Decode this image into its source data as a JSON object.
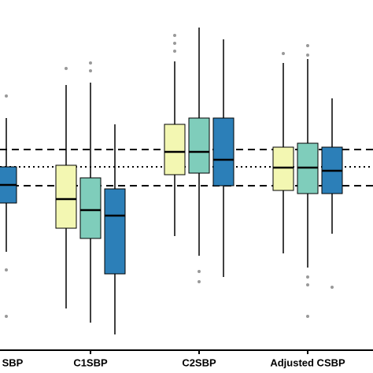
{
  "chart_data": {
    "type": "box",
    "categories": [
      "SBP",
      "C1SBP",
      "C2SBP",
      "Adjusted CSBP"
    ],
    "ylim": [
      0,
      445
    ],
    "hlines": [
      {
        "value": 255,
        "style": "dashed"
      },
      {
        "value": 233,
        "style": "dotted"
      },
      {
        "value": 209,
        "style": "dashed"
      }
    ],
    "series": [
      {
        "color": "#f3f7b2",
        "min": [
          null,
          53,
          145,
          123
        ],
        "q1": [
          null,
          155,
          223,
          203
        ],
        "median": [
          null,
          192,
          252,
          232
        ],
        "q3": [
          null,
          235,
          287,
          258
        ],
        "max": [
          null,
          337,
          367,
          365
        ],
        "outliers": [
          [],
          [
            358
          ],
          [
            400,
            390,
            380
          ],
          [
            377
          ]
        ]
      },
      {
        "color": "#7fcdbb",
        "min": [
          null,
          35,
          120,
          105
        ],
        "q1": [
          null,
          142,
          225,
          199
        ],
        "median": [
          null,
          178,
          252,
          232
        ],
        "q3": [
          null,
          219,
          295,
          263
        ],
        "max": [
          null,
          340,
          410,
          370
        ],
        "outliers": [
          [],
          [
            365,
            355
          ],
          [
            100,
            87
          ],
          [
            387,
            375,
            93,
            83,
            43
          ]
        ]
      },
      {
        "color": "#2c7fb8",
        "min": [
          125,
          20,
          93,
          148
        ],
        "q1": [
          187,
          97,
          209,
          199
        ],
        "median": [
          210,
          171,
          242,
          228
        ],
        "q3": [
          233,
          205,
          295,
          258
        ],
        "max": [
          295,
          287,
          395,
          320
        ],
        "outliers": [
          [
            323,
            102,
            43
          ],
          [],
          [],
          [
            80
          ]
        ]
      }
    ]
  }
}
